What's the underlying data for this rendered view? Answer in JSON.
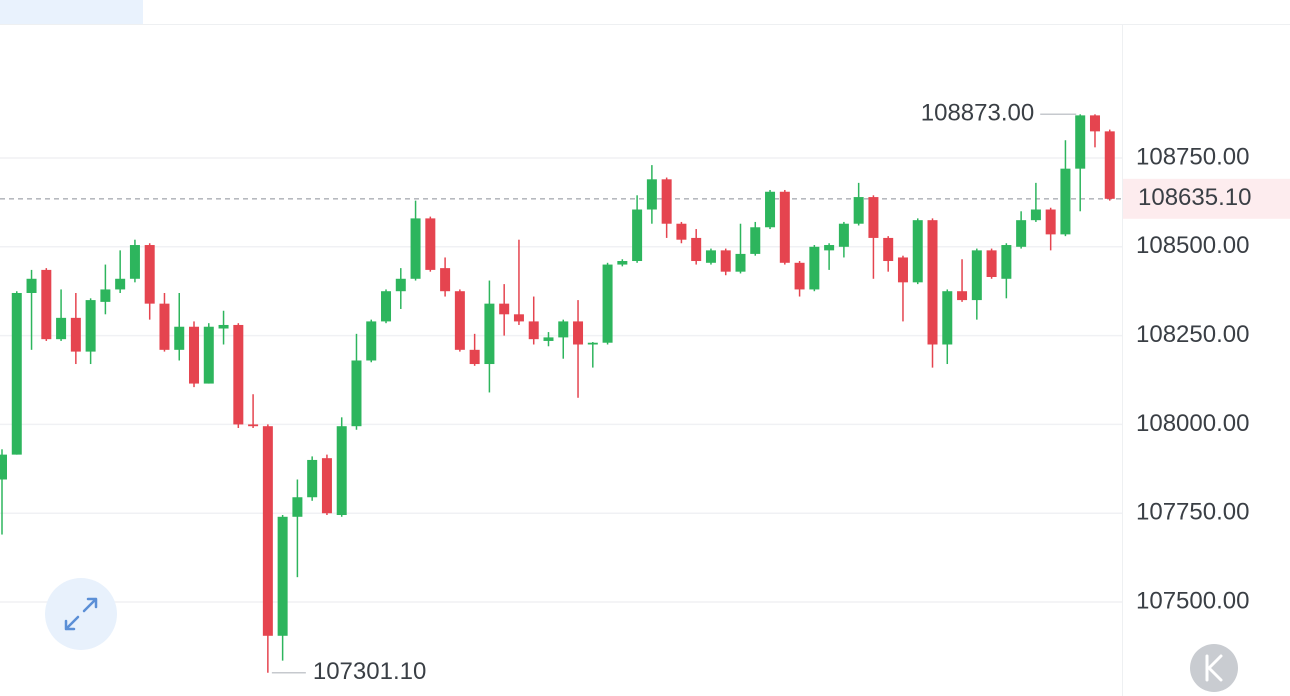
{
  "chart_data": {
    "type": "candlestick",
    "up_color": "#2db55d",
    "down_color": "#e5444f",
    "grid": true,
    "ylim": [
      107235.5,
      109124.4
    ],
    "yticks": [
      {
        "value": 108750,
        "label": "108750.00"
      },
      {
        "value": 108500,
        "label": "108500.00"
      },
      {
        "value": 108250,
        "label": "108250.00"
      },
      {
        "value": 108000,
        "label": "108000.00"
      },
      {
        "value": 107750,
        "label": "107750.00"
      },
      {
        "value": 107500,
        "label": "107500.00"
      }
    ],
    "last_price": {
      "value": 108635.1,
      "label": "108635.10"
    },
    "annotations": [
      {
        "value": 108873,
        "label": "108873.00"
      },
      {
        "value": 107301.1,
        "label": "107301.10"
      }
    ],
    "open": [
      107845,
      107915,
      108370,
      108435,
      108240,
      108300,
      108205,
      108345,
      108380,
      108410,
      108505,
      108340,
      108210,
      108275,
      108115,
      108270,
      108280,
      108000,
      107995,
      107405,
      107740,
      107795,
      107905,
      107745,
      107995,
      108180,
      108290,
      108375,
      108410,
      108580,
      108440,
      108375,
      108210,
      108170,
      108340,
      108310,
      108290,
      108235,
      108245,
      108290,
      108225,
      108230,
      108450,
      108460,
      108605,
      108690,
      108565,
      108525,
      108455,
      108490,
      108430,
      108480,
      108555,
      108655,
      108455,
      108380,
      108490,
      108500,
      108565,
      108640,
      108525,
      108470,
      108400,
      108575,
      108225,
      108375,
      108350,
      108490,
      108410,
      108500,
      108575,
      108605,
      108535,
      108720,
      108870,
      108825
    ],
    "high": [
      107930,
      108375,
      108435,
      108440,
      108380,
      108370,
      108355,
      108450,
      108490,
      108520,
      108510,
      108370,
      108370,
      108290,
      108285,
      108320,
      108285,
      108085,
      108000,
      107745,
      107845,
      107910,
      107915,
      108020,
      108255,
      108295,
      108380,
      108440,
      108630,
      108585,
      108470,
      108380,
      108255,
      108405,
      108395,
      108520,
      108360,
      108260,
      108295,
      108350,
      108232,
      108455,
      108465,
      108645,
      108730,
      108695,
      108570,
      108550,
      108495,
      108495,
      108565,
      108570,
      108660,
      108660,
      108460,
      108505,
      108510,
      108570,
      108680,
      108645,
      108530,
      108475,
      108580,
      108580,
      108380,
      108465,
      108495,
      108495,
      108510,
      108600,
      108680,
      108610,
      108800,
      108873,
      108873,
      108830
    ],
    "low": [
      107690,
      107915,
      108210,
      108235,
      108235,
      108170,
      108170,
      108310,
      108370,
      108400,
      108295,
      108205,
      108180,
      108105,
      108115,
      108225,
      107990,
      107990,
      107301.1,
      107335,
      107570,
      107785,
      107745,
      107740,
      107985,
      108175,
      108285,
      108325,
      108405,
      108430,
      108360,
      108205,
      108165,
      108090,
      108250,
      108280,
      108225,
      108220,
      108185,
      108075,
      108160,
      108225,
      108445,
      108455,
      108565,
      108525,
      108510,
      108450,
      108450,
      108420,
      108425,
      108475,
      108550,
      108450,
      108360,
      108375,
      108435,
      108470,
      108560,
      108410,
      108430,
      108290,
      108395,
      108160,
      108170,
      108345,
      108295,
      108410,
      108355,
      108495,
      108570,
      108490,
      108530,
      108600,
      108780,
      108630
    ],
    "close": [
      107915,
      108370,
      108410,
      108240,
      108300,
      108205,
      108350,
      108380,
      108410,
      108505,
      108340,
      108210,
      108275,
      108115,
      108275,
      108280,
      108000,
      107995,
      107405,
      107740,
      107795,
      107900,
      107750,
      107995,
      108180,
      108290,
      108375,
      108410,
      108580,
      108435,
      108375,
      108210,
      108170,
      108340,
      108310,
      108290,
      108240,
      108245,
      108290,
      108225,
      108230,
      108450,
      108460,
      108605,
      108690,
      108565,
      108520,
      108460,
      108490,
      108430,
      108480,
      108555,
      108655,
      108455,
      108380,
      108500,
      108505,
      108565,
      108640,
      108525,
      108460,
      108400,
      108575,
      108225,
      108375,
      108350,
      108490,
      108415,
      108505,
      108575,
      108605,
      108535,
      108720,
      108870,
      108825,
      108635.1
    ]
  }
}
